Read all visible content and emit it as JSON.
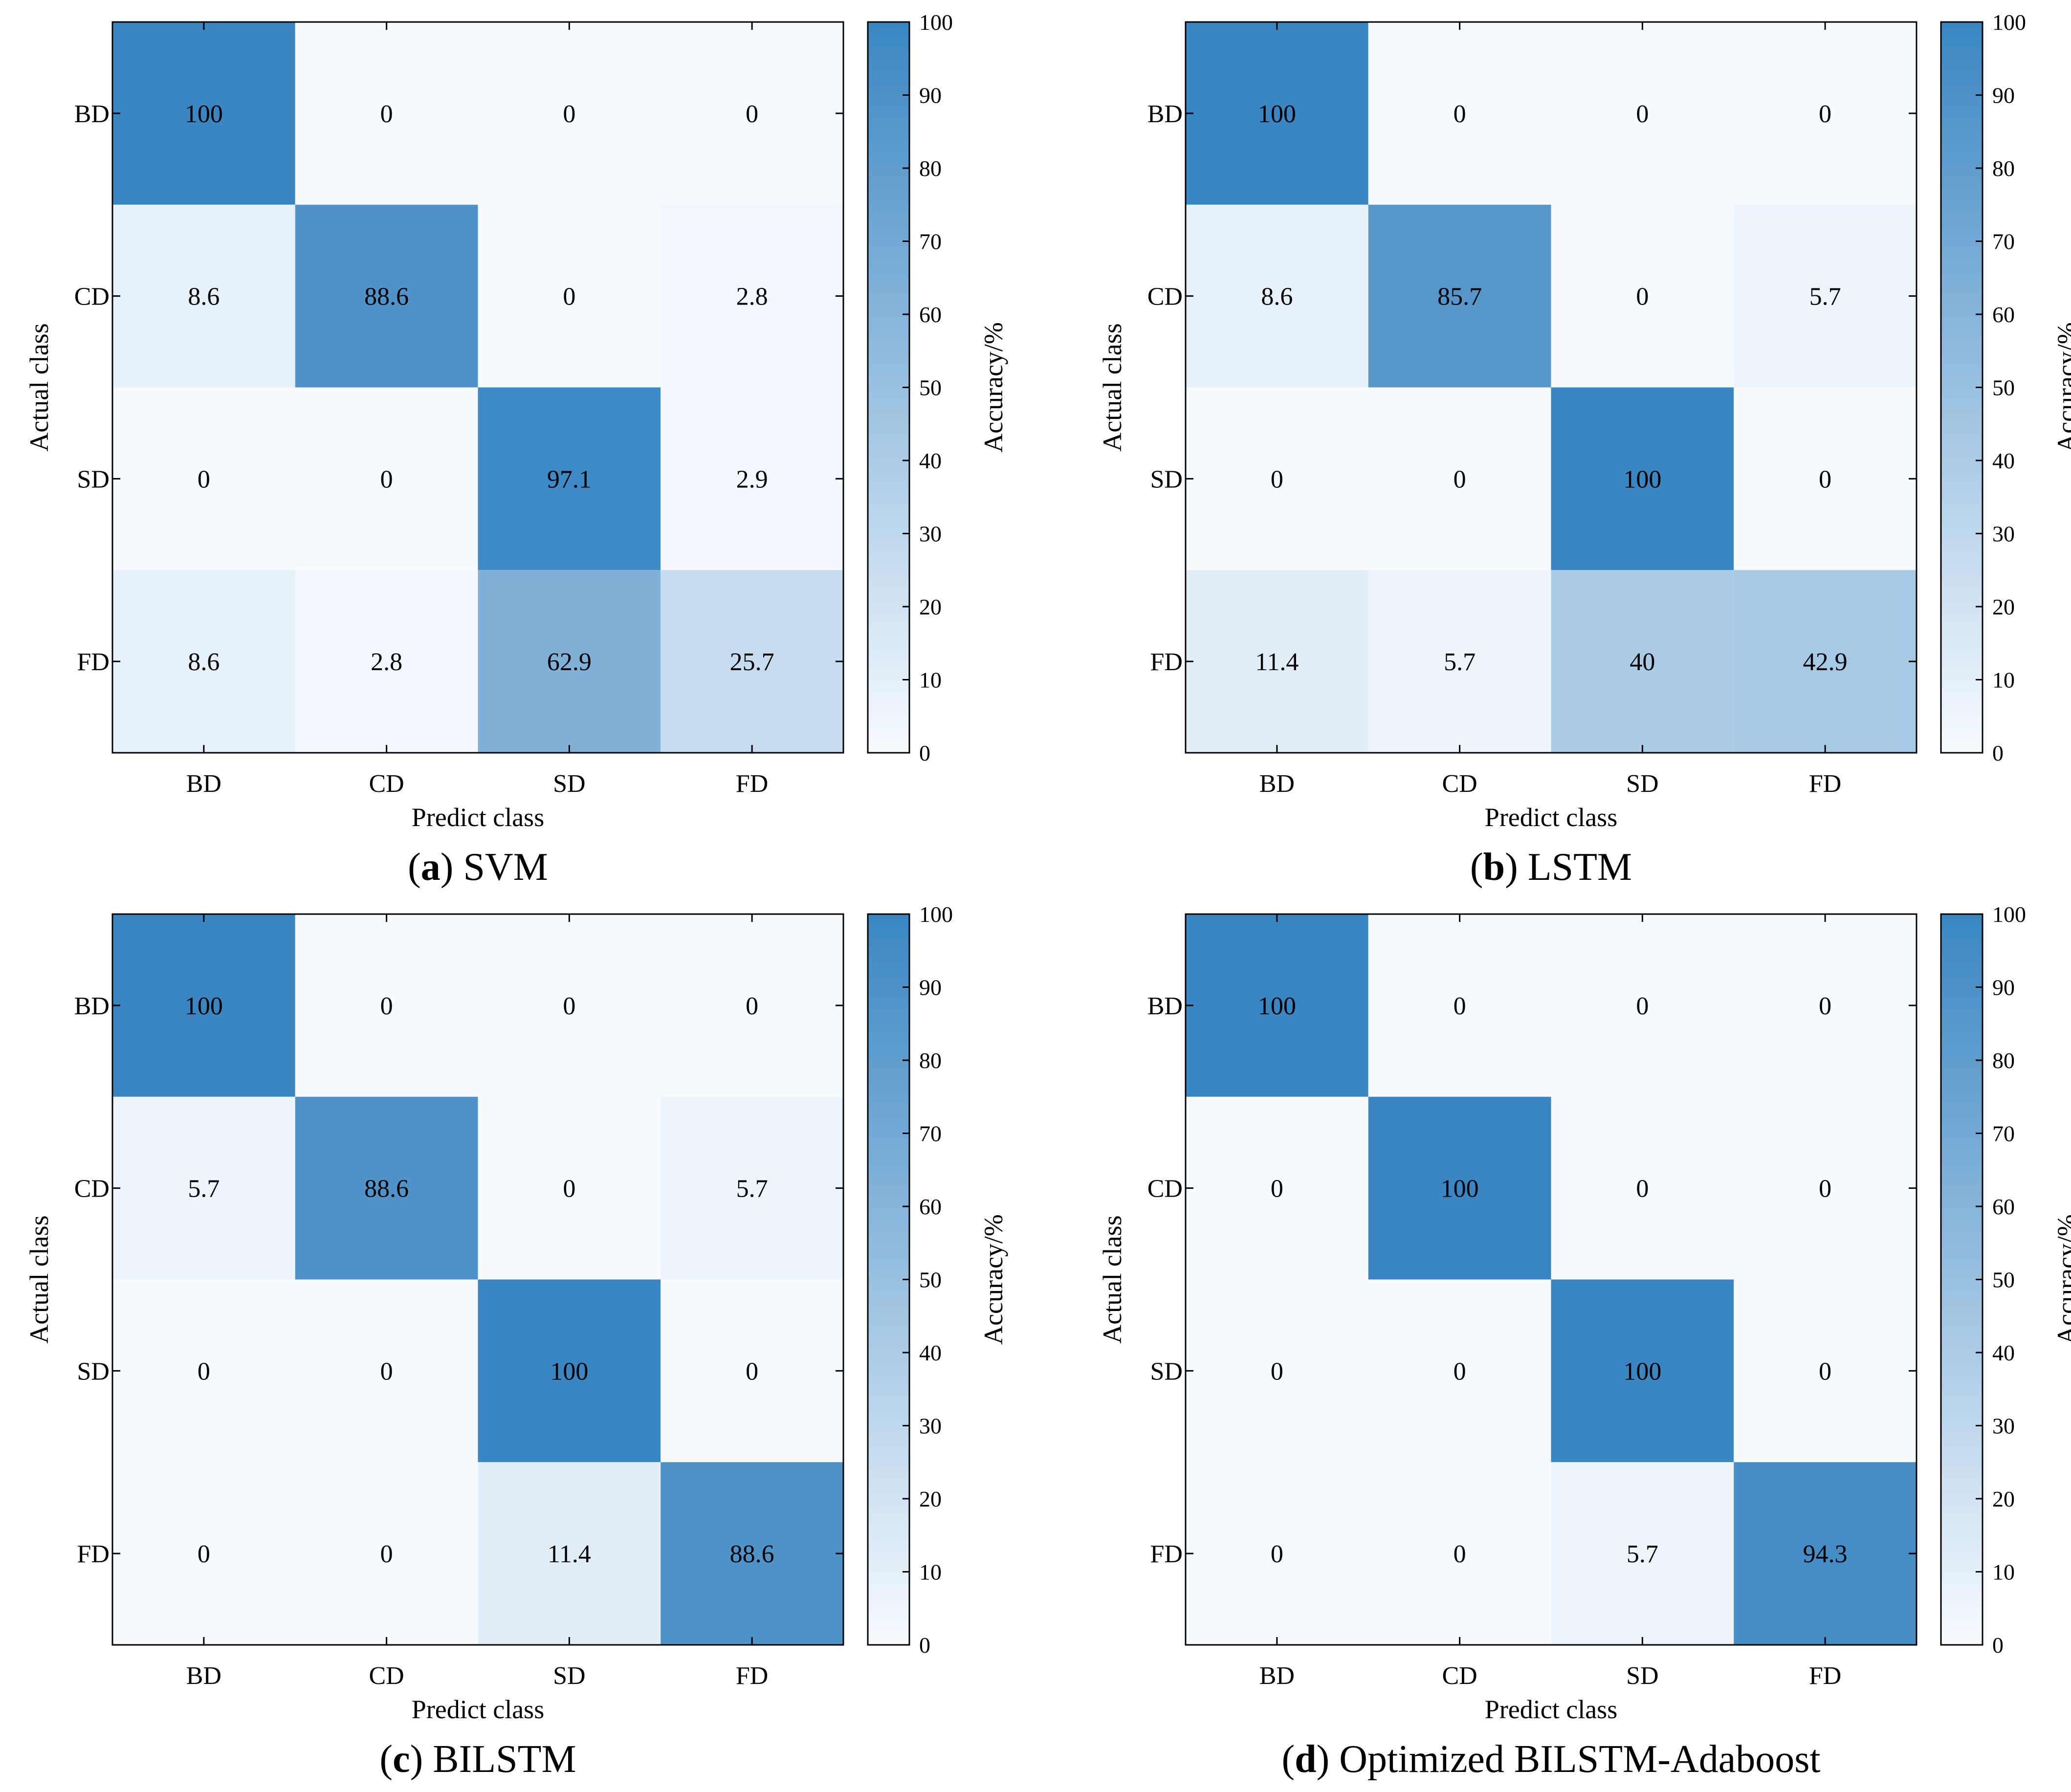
{
  "colorbar": {
    "label": "Accuracy/%",
    "ticks": [
      "0",
      "10",
      "20",
      "30",
      "40",
      "50",
      "60",
      "70",
      "80",
      "90",
      "100"
    ]
  },
  "colors": {
    "low": "#f7fbff",
    "high": "#3a86c2"
  },
  "chart_data": [
    {
      "type": "heatmap",
      "caption_letter": "a",
      "caption_text": " SVM",
      "xlabel": "Predict class",
      "ylabel": "Actual class",
      "x_categories": [
        "BD",
        "CD",
        "SD",
        "FD"
      ],
      "y_categories": [
        "BD",
        "CD",
        "SD",
        "FD"
      ],
      "values": [
        [
          100,
          0,
          0,
          0
        ],
        [
          8.6,
          88.6,
          0,
          2.8
        ],
        [
          0,
          0,
          97.1,
          2.9
        ],
        [
          8.6,
          2.8,
          62.9,
          25.7
        ]
      ],
      "color_range": [
        0,
        100
      ]
    },
    {
      "type": "heatmap",
      "caption_letter": "b",
      "caption_text": " LSTM",
      "xlabel": "Predict class",
      "ylabel": "Actual class",
      "x_categories": [
        "BD",
        "CD",
        "SD",
        "FD"
      ],
      "y_categories": [
        "BD",
        "CD",
        "SD",
        "FD"
      ],
      "values": [
        [
          100,
          0,
          0,
          0
        ],
        [
          8.6,
          85.7,
          0,
          5.7
        ],
        [
          0,
          0,
          100,
          0
        ],
        [
          11.4,
          5.7,
          40,
          42.9
        ]
      ],
      "color_range": [
        0,
        100
      ]
    },
    {
      "type": "heatmap",
      "caption_letter": "c",
      "caption_text": " BILSTM",
      "xlabel": "Predict class",
      "ylabel": "Actual class",
      "x_categories": [
        "BD",
        "CD",
        "SD",
        "FD"
      ],
      "y_categories": [
        "BD",
        "CD",
        "SD",
        "FD"
      ],
      "values": [
        [
          100,
          0,
          0,
          0
        ],
        [
          5.7,
          88.6,
          0,
          5.7
        ],
        [
          0,
          0,
          100,
          0
        ],
        [
          0,
          0,
          11.4,
          88.6
        ]
      ],
      "color_range": [
        0,
        100
      ]
    },
    {
      "type": "heatmap",
      "caption_letter": "d",
      "caption_text": " Optimized BILSTM-Adaboost",
      "xlabel": "Predict class",
      "ylabel": "Actual class",
      "x_categories": [
        "BD",
        "CD",
        "SD",
        "FD"
      ],
      "y_categories": [
        "BD",
        "CD",
        "SD",
        "FD"
      ],
      "values": [
        [
          100,
          0,
          0,
          0
        ],
        [
          0,
          100,
          0,
          0
        ],
        [
          0,
          0,
          100,
          0
        ],
        [
          0,
          0,
          5.7,
          94.3
        ]
      ],
      "color_range": [
        0,
        100
      ]
    }
  ]
}
